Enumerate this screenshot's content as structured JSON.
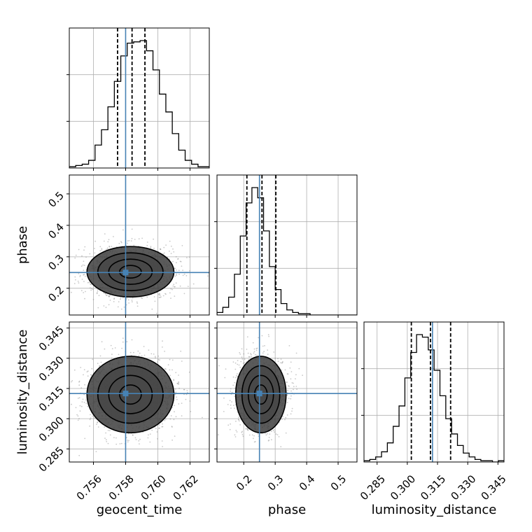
{
  "chart_data": {
    "type": "corner",
    "parameters": [
      {
        "name": "geocent_time",
        "label": "geocent_time",
        "range": [
          0.7545,
          0.7632
        ],
        "ticks": [
          0.756,
          0.758,
          0.76,
          0.762
        ],
        "tick_labels": [
          "0.756",
          "0.758",
          "0.760",
          "0.762"
        ],
        "truth": 0.758,
        "quantiles": [
          0.7575,
          0.7584,
          0.7592
        ]
      },
      {
        "name": "phase",
        "label": "phase",
        "range": [
          0.115,
          0.56
        ],
        "ticks": [
          0.2,
          0.3,
          0.4,
          0.5
        ],
        "tick_labels": [
          "0.2",
          "0.3",
          "0.4",
          "0.5"
        ],
        "truth": 0.25,
        "quantiles": [
          0.21,
          0.258,
          0.302
        ]
      },
      {
        "name": "luminosity_distance",
        "label": "luminosity_distance",
        "range": [
          0.2785,
          0.348
        ],
        "ticks": [
          0.285,
          0.3,
          0.315,
          0.33,
          0.345
        ],
        "tick_labels": [
          "0.285",
          "0.300",
          "0.315",
          "0.330",
          "0.345"
        ],
        "truth": 0.3125,
        "quantiles": [
          0.302,
          0.3115,
          0.3215
        ]
      }
    ],
    "histograms": [
      {
        "parameter": "geocent_time",
        "bin_edges_start": 0.7545,
        "bin_width": 0.0004,
        "counts": [
          1,
          2,
          3,
          6,
          18,
          30,
          48,
          68,
          88,
          98,
          99,
          100,
          92,
          77,
          58,
          44,
          27,
          14,
          6,
          3,
          1,
          1
        ]
      },
      {
        "parameter": "phase",
        "bin_edges_start": 0.115,
        "bin_width": 0.0185,
        "counts": [
          2,
          6,
          14,
          32,
          62,
          88,
          100,
          92,
          66,
          38,
          20,
          9,
          4,
          2,
          1,
          1,
          0,
          0,
          0,
          0,
          0,
          0,
          0,
          0
        ]
      },
      {
        "parameter": "luminosity_distance",
        "bin_edges_start": 0.2785,
        "bin_width": 0.0029,
        "counts": [
          1,
          2,
          4,
          8,
          15,
          28,
          44,
          66,
          86,
          100,
          98,
          88,
          72,
          52,
          34,
          22,
          13,
          7,
          4,
          2,
          1,
          1,
          0,
          1
        ]
      }
    ],
    "joint_2d": [
      {
        "x": "geocent_time",
        "y": "phase",
        "center": [
          0.7583,
          0.2525
        ],
        "sigma": [
          0.00135,
          0.04
        ]
      },
      {
        "x": "geocent_time",
        "y": "luminosity_distance",
        "center": [
          0.7583,
          0.312
        ],
        "sigma": [
          0.00135,
          0.0095
        ]
      },
      {
        "x": "phase",
        "y": "luminosity_distance",
        "center": [
          0.2545,
          0.312
        ],
        "sigma": [
          0.04,
          0.0095
        ]
      }
    ],
    "truth_color": "#4682b4",
    "contour_levels_sigma": [
      0.5,
      1.0,
      1.5,
      2.0
    ],
    "grid": true
  }
}
